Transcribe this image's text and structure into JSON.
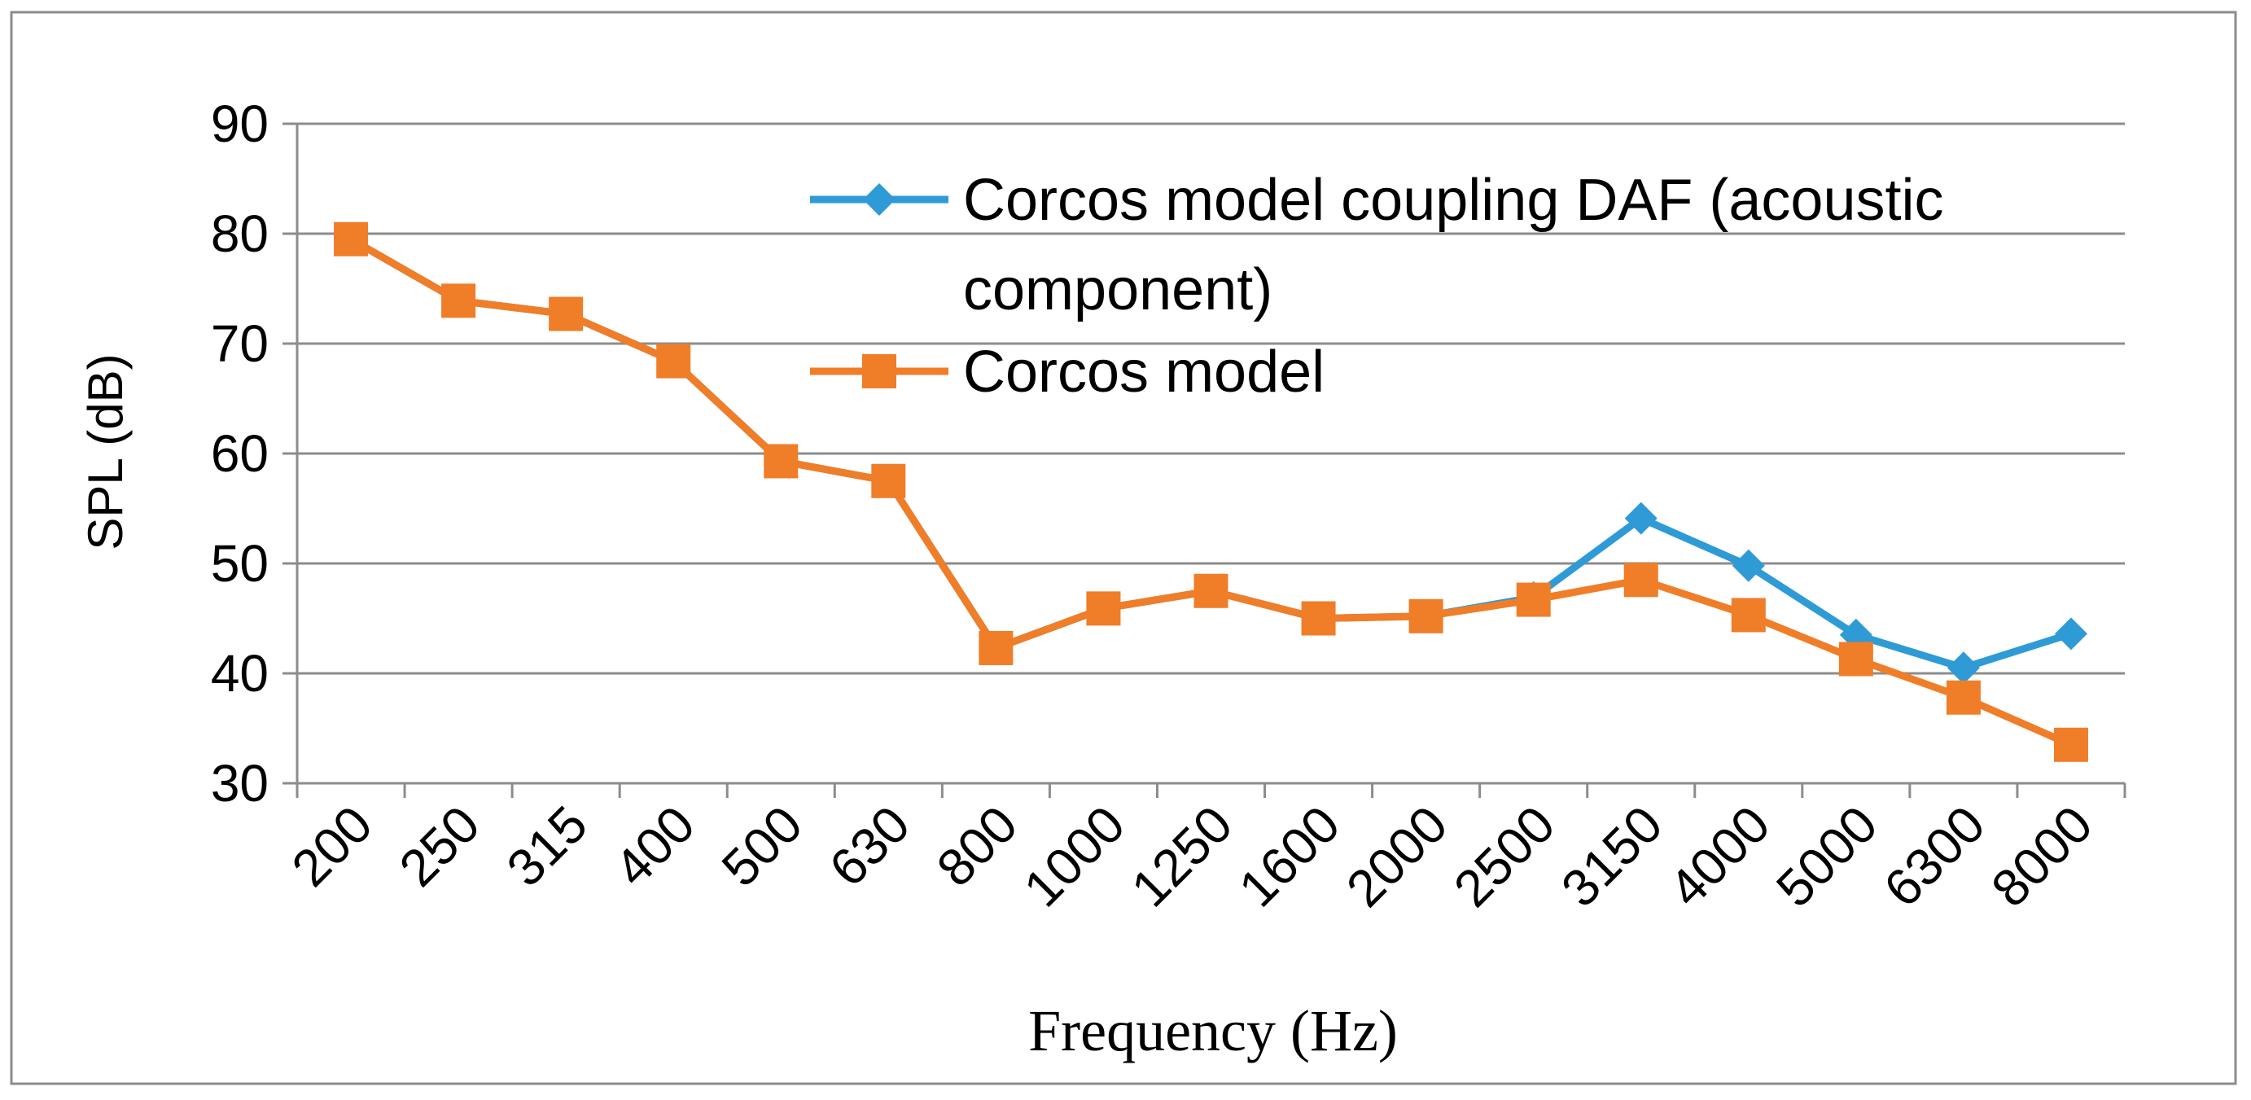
{
  "chart_data": {
    "type": "line",
    "title": "",
    "xlabel": "Frequency (Hz)",
    "ylabel": "SPL (dB)",
    "ylim": [
      30,
      90
    ],
    "yticks": [
      30,
      40,
      50,
      60,
      70,
      80,
      90
    ],
    "grid": true,
    "legend_position": "top-right",
    "categories": [
      "200",
      "250",
      "315",
      "400",
      "500",
      "630",
      "800",
      "1000",
      "1250",
      "1600",
      "2000",
      "2500",
      "3150",
      "4000",
      "5000",
      "6300",
      "8000"
    ],
    "series": [
      {
        "name": "Corcos model coupling DAF (acoustic component)",
        "legend_lines": [
          "Corcos model coupling DAF (acoustic",
          "component)"
        ],
        "color": "#2E9BD6",
        "marker": "diamond",
        "values": [
          79.5,
          73.9,
          72.7,
          68.4,
          59.3,
          57.5,
          42.3,
          45.9,
          47.5,
          45.0,
          45.2,
          46.9,
          54.1,
          49.8,
          43.5,
          40.5,
          43.6
        ]
      },
      {
        "name": "Corcos model",
        "legend_lines": [
          "Corcos model"
        ],
        "color": "#F07D28",
        "marker": "square",
        "values": [
          79.5,
          73.9,
          72.7,
          68.4,
          59.3,
          57.5,
          42.3,
          45.9,
          47.5,
          45.0,
          45.2,
          46.7,
          48.5,
          45.3,
          41.3,
          37.8,
          33.5
        ]
      }
    ]
  }
}
